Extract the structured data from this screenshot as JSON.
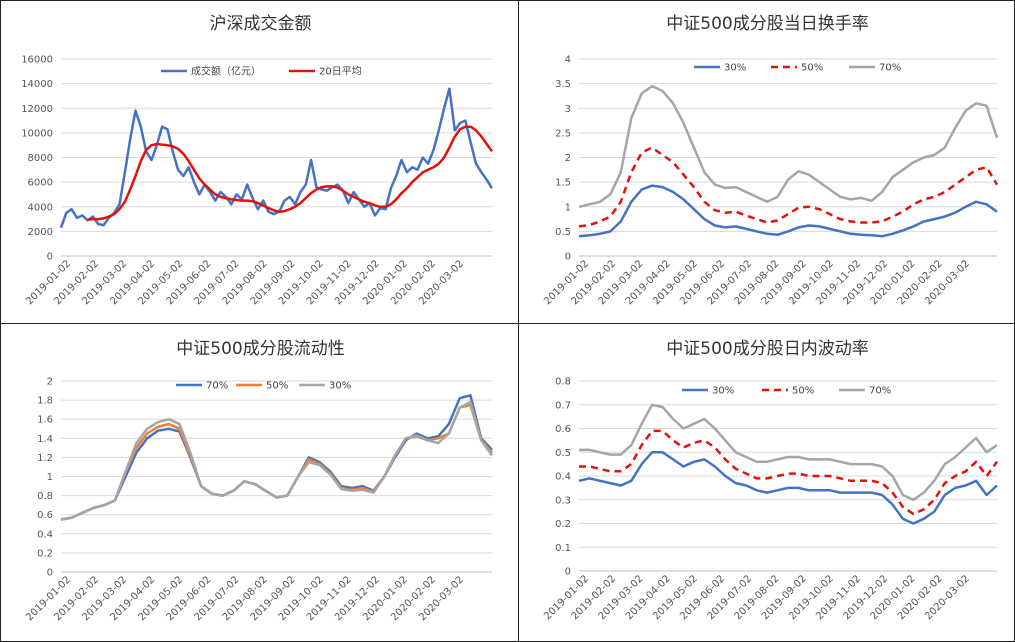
{
  "chart_data": [
    {
      "id": "turnover",
      "type": "line",
      "title": "沪深成交金额",
      "xlabel": "",
      "ylabel": "",
      "ylim": [
        0,
        16000
      ],
      "yticks": [
        "0",
        "2000",
        "4000",
        "6000",
        "8000",
        "10000",
        "12000",
        "14000",
        "16000"
      ],
      "x_tick_labels": [
        "2019-01-02",
        "2019-02-02",
        "2019-03-02",
        "2019-04-02",
        "2019-05-02",
        "2019-06-02",
        "2019-07-02",
        "2019-08-02",
        "2019-09-02",
        "2019-10-02",
        "2019-11-02",
        "2019-12-02",
        "2020-01-02",
        "2020-02-02",
        "2020-03-02"
      ],
      "grid": true,
      "legend_position": "top",
      "series": [
        {
          "name": "成交额（亿元）",
          "color": "#4472C4",
          "dash": "",
          "width": 2.5,
          "values": [
            2300,
            3500,
            3800,
            3100,
            3300,
            2900,
            3200,
            2600,
            2500,
            3100,
            3500,
            4200,
            6800,
            9500,
            11800,
            10500,
            8500,
            7800,
            9000,
            10500,
            10300,
            8500,
            7000,
            6500,
            7200,
            6000,
            5000,
            5800,
            5200,
            4500,
            5200,
            4800,
            4200,
            5000,
            4600,
            5800,
            4700,
            3800,
            4500,
            3600,
            3400,
            3600,
            4500,
            4800,
            4200,
            5200,
            5800,
            7800,
            5600,
            5400,
            5300,
            5600,
            5800,
            5300,
            4300,
            5200,
            4600,
            4000,
            4300,
            3300,
            3900,
            3800,
            5500,
            6500,
            7800,
            6800,
            7200,
            7000,
            8000,
            7500,
            8600,
            10200,
            12000,
            13600,
            10200,
            10800,
            11000,
            9200,
            7500,
            6800,
            6200,
            5500
          ]
        },
        {
          "name": "20日平均",
          "color": "#E3120B",
          "dash": "",
          "width": 2.5,
          "values": [
            null,
            null,
            null,
            null,
            null,
            2950,
            3000,
            3000,
            3050,
            3200,
            3400,
            3800,
            4400,
            5400,
            6500,
            7700,
            8600,
            9000,
            9100,
            9050,
            9000,
            8900,
            8700,
            8300,
            7700,
            7000,
            6300,
            5800,
            5400,
            5000,
            4800,
            4700,
            4600,
            4550,
            4500,
            4500,
            4450,
            4300,
            4100,
            3900,
            3700,
            3600,
            3650,
            3800,
            4000,
            4300,
            4700,
            5100,
            5400,
            5600,
            5650,
            5650,
            5550,
            5300,
            5000,
            4800,
            4600,
            4400,
            4300,
            4100,
            4000,
            4000,
            4200,
            4600,
            5100,
            5500,
            6000,
            6400,
            6800,
            7000,
            7200,
            7500,
            8000,
            8800,
            9700,
            10300,
            10500,
            10500,
            10200,
            9700,
            9100,
            8500
          ]
        }
      ]
    },
    {
      "id": "turnover-rate",
      "type": "line",
      "title": "中证500成分股当日换手率",
      "xlabel": "",
      "ylabel": "",
      "ylim": [
        0,
        4
      ],
      "yticks": [
        "0",
        "0.5",
        "1",
        "1.5",
        "2",
        "2.5",
        "3",
        "3.5",
        "4"
      ],
      "x_tick_labels": [
        "2019-01-02",
        "2019-02-02",
        "2019-03-02",
        "2019-04-02",
        "2019-05-02",
        "2019-06-02",
        "2019-07-02",
        "2019-08-02",
        "2019-09-02",
        "2019-10-02",
        "2019-11-02",
        "2019-12-02",
        "2020-01-02",
        "2020-02-02",
        "2020-03-02"
      ],
      "grid": true,
      "legend_position": "top",
      "series": [
        {
          "name": "30%",
          "color": "#4472C4",
          "dash": "",
          "width": 2.5,
          "values": [
            0.4,
            0.42,
            0.45,
            0.5,
            0.7,
            1.1,
            1.35,
            1.43,
            1.4,
            1.3,
            1.15,
            0.95,
            0.75,
            0.62,
            0.58,
            0.6,
            0.55,
            0.5,
            0.45,
            0.43,
            0.5,
            0.58,
            0.62,
            0.6,
            0.55,
            0.5,
            0.45,
            0.43,
            0.42,
            0.4,
            0.45,
            0.52,
            0.6,
            0.7,
            0.75,
            0.8,
            0.88,
            1.0,
            1.1,
            1.05,
            0.9
          ]
        },
        {
          "name": "50%",
          "color": "#E3120B",
          "dash": "7,5",
          "width": 2.5,
          "values": [
            0.6,
            0.63,
            0.7,
            0.8,
            1.1,
            1.7,
            2.1,
            2.2,
            2.05,
            1.9,
            1.65,
            1.4,
            1.1,
            0.93,
            0.88,
            0.9,
            0.82,
            0.75,
            0.68,
            0.72,
            0.85,
            0.98,
            1.0,
            0.95,
            0.85,
            0.75,
            0.7,
            0.68,
            0.68,
            0.7,
            0.8,
            0.9,
            1.05,
            1.15,
            1.2,
            1.3,
            1.45,
            1.6,
            1.75,
            1.8,
            1.45
          ]
        },
        {
          "name": "70%",
          "color": "#A5A5A5",
          "dash": "",
          "width": 2.5,
          "values": [
            1.0,
            1.05,
            1.1,
            1.25,
            1.7,
            2.8,
            3.3,
            3.45,
            3.35,
            3.1,
            2.7,
            2.2,
            1.7,
            1.45,
            1.38,
            1.4,
            1.3,
            1.2,
            1.1,
            1.2,
            1.55,
            1.72,
            1.65,
            1.5,
            1.35,
            1.2,
            1.15,
            1.18,
            1.12,
            1.3,
            1.6,
            1.75,
            1.9,
            2.0,
            2.05,
            2.2,
            2.6,
            2.95,
            3.1,
            3.05,
            2.4
          ]
        }
      ]
    },
    {
      "id": "liquidity",
      "type": "line",
      "title": "中证500成分股流动性",
      "xlabel": "",
      "ylabel": "",
      "ylim": [
        0,
        2
      ],
      "yticks": [
        "0",
        "0.2",
        "0.4",
        "0.6",
        "0.8",
        "1",
        "1.2",
        "1.4",
        "1.6",
        "1.8",
        "2"
      ],
      "x_tick_labels": [
        "2019-01-02",
        "2019-02-02",
        "2019-03-02",
        "2019-04-02",
        "2019-05-02",
        "2019-06-02",
        "2019-07-02",
        "2019-08-02",
        "2019-09-02",
        "2019-10-02",
        "2019-11-02",
        "2019-12-02",
        "2020-01-02",
        "2020-02-02",
        "2020-03-02"
      ],
      "grid": true,
      "legend_position": "top",
      "series": [
        {
          "name": "70%",
          "color": "#4472C4",
          "dash": "",
          "width": 2.5,
          "values": [
            0.55,
            0.57,
            0.62,
            0.67,
            0.7,
            0.75,
            1.0,
            1.25,
            1.4,
            1.48,
            1.5,
            1.47,
            1.2,
            0.9,
            0.82,
            0.8,
            0.85,
            0.95,
            0.92,
            0.85,
            0.78,
            0.8,
            1.0,
            1.2,
            1.15,
            1.05,
            0.9,
            0.88,
            0.9,
            0.85,
            1.0,
            1.2,
            1.38,
            1.45,
            1.4,
            1.42,
            1.55,
            1.82,
            1.85,
            1.4,
            1.28
          ]
        },
        {
          "name": "50%",
          "color": "#ED7D31",
          "dash": "",
          "width": 2.5,
          "values": [
            0.55,
            0.57,
            0.62,
            0.67,
            0.7,
            0.75,
            1.05,
            1.3,
            1.45,
            1.52,
            1.55,
            1.5,
            1.22,
            0.9,
            0.82,
            0.8,
            0.85,
            0.95,
            0.92,
            0.85,
            0.78,
            0.8,
            1.0,
            1.18,
            1.13,
            1.03,
            0.88,
            0.86,
            0.88,
            0.84,
            1.0,
            1.22,
            1.4,
            1.42,
            1.38,
            1.4,
            1.45,
            1.72,
            1.75,
            1.38,
            1.25
          ]
        },
        {
          "name": "30%",
          "color": "#A5A5A5",
          "dash": "",
          "width": 2.5,
          "values": [
            0.55,
            0.57,
            0.62,
            0.67,
            0.7,
            0.75,
            1.05,
            1.35,
            1.5,
            1.57,
            1.6,
            1.55,
            1.25,
            0.9,
            0.82,
            0.8,
            0.85,
            0.95,
            0.92,
            0.85,
            0.78,
            0.8,
            1.0,
            1.15,
            1.12,
            1.02,
            0.87,
            0.85,
            0.86,
            0.83,
            1.0,
            1.22,
            1.4,
            1.43,
            1.38,
            1.35,
            1.45,
            1.72,
            1.78,
            1.38,
            1.22
          ]
        }
      ]
    },
    {
      "id": "volatility",
      "type": "line",
      "title": "中证500成分股日内波动率",
      "xlabel": "",
      "ylabel": "",
      "ylim": [
        0,
        0.8
      ],
      "yticks": [
        "0",
        "0.1",
        "0.2",
        "0.3",
        "0.4",
        "0.5",
        "0.6",
        "0.7",
        "0.8"
      ],
      "x_tick_labels": [
        "2019-01-02",
        "2019-02-02",
        "2019-03-02",
        "2019-04-02",
        "2019-05-02",
        "2019-06-02",
        "2019-07-02",
        "2019-08-02",
        "2019-09-02",
        "2019-10-02",
        "2019-11-02",
        "2019-12-02",
        "2020-01-02",
        "2020-02-02",
        "2020-03-02"
      ],
      "grid": true,
      "legend_position": "top",
      "series": [
        {
          "name": "30%",
          "color": "#4472C4",
          "dash": "",
          "width": 2.5,
          "values": [
            0.38,
            0.39,
            0.38,
            0.37,
            0.36,
            0.38,
            0.45,
            0.5,
            0.5,
            0.47,
            0.44,
            0.46,
            0.47,
            0.44,
            0.4,
            0.37,
            0.36,
            0.34,
            0.33,
            0.34,
            0.35,
            0.35,
            0.34,
            0.34,
            0.34,
            0.33,
            0.33,
            0.33,
            0.33,
            0.32,
            0.28,
            0.22,
            0.2,
            0.22,
            0.25,
            0.32,
            0.35,
            0.36,
            0.38,
            0.32,
            0.36
          ]
        },
        {
          "name": "50%",
          "color": "#E3120B",
          "dash": "7,5",
          "width": 2.5,
          "values": [
            0.44,
            0.44,
            0.43,
            0.42,
            0.42,
            0.45,
            0.53,
            0.59,
            0.59,
            0.55,
            0.52,
            0.54,
            0.55,
            0.52,
            0.47,
            0.43,
            0.41,
            0.39,
            0.39,
            0.4,
            0.41,
            0.41,
            0.4,
            0.4,
            0.4,
            0.39,
            0.38,
            0.38,
            0.38,
            0.37,
            0.33,
            0.27,
            0.24,
            0.26,
            0.3,
            0.37,
            0.4,
            0.42,
            0.46,
            0.4,
            0.46
          ]
        },
        {
          "name": "70%",
          "color": "#A5A5A5",
          "dash": "",
          "width": 2.5,
          "values": [
            0.51,
            0.51,
            0.5,
            0.49,
            0.49,
            0.53,
            0.62,
            0.7,
            0.69,
            0.64,
            0.6,
            0.62,
            0.64,
            0.6,
            0.55,
            0.5,
            0.48,
            0.46,
            0.46,
            0.47,
            0.48,
            0.48,
            0.47,
            0.47,
            0.47,
            0.46,
            0.45,
            0.45,
            0.45,
            0.44,
            0.4,
            0.32,
            0.3,
            0.33,
            0.38,
            0.45,
            0.48,
            0.52,
            0.56,
            0.5,
            0.53
          ]
        }
      ]
    }
  ]
}
